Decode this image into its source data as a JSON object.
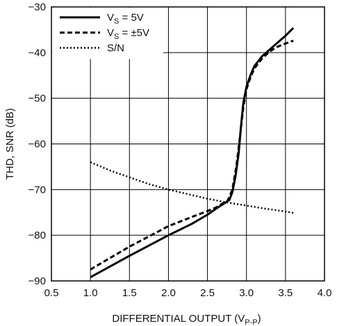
{
  "chart_data": {
    "type": "line",
    "xlabel": "DIFFERENTIAL OUTPUT (V",
    "xlabel_sub": "P-P",
    "xlabel_end": ")",
    "ylabel": "THD, SNR (dB)",
    "xlim": [
      0.5,
      4.0
    ],
    "ylim": [
      -90,
      -30
    ],
    "xticks": [
      "0.5",
      "1.0",
      "1.5",
      "2.0",
      "2.5",
      "3.0",
      "3.5",
      "4.0"
    ],
    "xtick_values": [
      0.5,
      1.0,
      1.5,
      2.0,
      2.5,
      3.0,
      3.5,
      4.0
    ],
    "yticks": [
      "−30",
      "−40",
      "−50",
      "−60",
      "−70",
      "−80",
      "−90"
    ],
    "ytick_values": [
      -30,
      -40,
      -50,
      -60,
      -70,
      -80,
      -90
    ],
    "grid": true,
    "legend_position": "top-left",
    "series": [
      {
        "name": "V",
        "name_sub": "S",
        "name_rest": " = 5V",
        "style": "solid",
        "x": [
          1.0,
          1.5,
          2.0,
          2.3,
          2.5,
          2.6,
          2.7,
          2.78,
          2.82,
          2.86,
          2.9,
          2.93,
          2.96,
          3.0,
          3.05,
          3.1,
          3.2,
          3.3,
          3.4,
          3.5,
          3.6
        ],
        "y": [
          -89.2,
          -84.5,
          -80.0,
          -77.5,
          -75.5,
          -74.3,
          -73.2,
          -72.3,
          -70.5,
          -67.0,
          -62.0,
          -56.0,
          -51.0,
          -47.5,
          -45.0,
          -43.0,
          -40.8,
          -39.3,
          -37.8,
          -36.3,
          -34.6
        ]
      },
      {
        "name": "V",
        "name_sub": "S",
        "name_rest": " = ±5V",
        "style": "dashed",
        "x": [
          1.0,
          1.5,
          2.0,
          2.3,
          2.5,
          2.6,
          2.7,
          2.76,
          2.82,
          2.87,
          2.92,
          2.96,
          3.0,
          3.05,
          3.1,
          3.2,
          3.3,
          3.4,
          3.5,
          3.6
        ],
        "y": [
          -87.5,
          -82.5,
          -78.0,
          -76.0,
          -74.7,
          -74.0,
          -73.0,
          -72.4,
          -70.0,
          -65.0,
          -58.0,
          -52.0,
          -48.0,
          -45.5,
          -43.5,
          -41.3,
          -39.7,
          -38.7,
          -38.0,
          -37.4
        ]
      },
      {
        "name": "S/N",
        "style": "dotted",
        "x": [
          1.0,
          1.25,
          1.5,
          1.75,
          2.0,
          2.25,
          2.5,
          2.75,
          3.0,
          3.25,
          3.5,
          3.6
        ],
        "y": [
          -64.0,
          -65.8,
          -67.3,
          -68.8,
          -70.0,
          -71.0,
          -72.0,
          -72.8,
          -73.5,
          -74.2,
          -74.8,
          -75.1
        ]
      }
    ]
  }
}
